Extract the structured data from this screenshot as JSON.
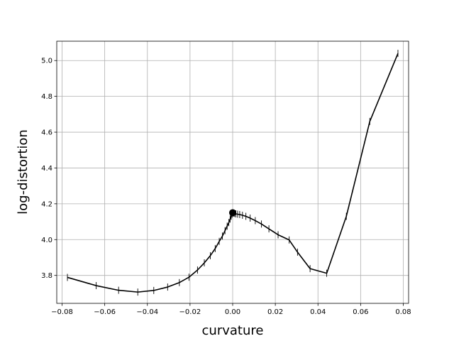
{
  "chart_data": {
    "type": "line",
    "xlabel": "curvature",
    "ylabel": "log-distortion",
    "xlim": [
      -0.0825,
      0.0825
    ],
    "ylim": [
      3.644,
      5.108
    ],
    "grid": true,
    "xticks": [
      -0.08,
      -0.06,
      -0.04,
      -0.02,
      0.0,
      0.02,
      0.04,
      0.06,
      0.08
    ],
    "xtick_labels": [
      "−0.08",
      "−0.06",
      "−0.04",
      "−0.02",
      "0.00",
      "0.02",
      "0.04",
      "0.06",
      "0.08"
    ],
    "yticks": [
      3.8,
      4.0,
      4.2,
      4.4,
      4.6,
      4.8,
      5.0
    ],
    "ytick_labels": [
      "3.8",
      "4.0",
      "4.2",
      "4.4",
      "4.6",
      "4.8",
      "5.0"
    ],
    "line_color": "#000000",
    "series": [
      {
        "x": [
          -0.0775,
          -0.064,
          -0.0535,
          -0.0445,
          -0.037,
          -0.0305,
          -0.025,
          -0.0205,
          -0.0165,
          -0.0133,
          -0.0105,
          -0.0082,
          -0.0063,
          -0.0048,
          -0.0036,
          -0.0026,
          -0.0018,
          -0.0012,
          -0.0007,
          -0.0003,
          0.0,
          0.0004,
          0.0009,
          0.0015,
          0.0023,
          0.0033,
          0.0046,
          0.0062,
          0.0082,
          0.0106,
          0.0135,
          0.017,
          0.0213,
          0.0265,
          0.0304,
          0.0363,
          0.0441,
          0.0533,
          0.0643,
          0.0775
        ],
        "y": [
          3.789,
          3.743,
          3.717,
          3.707,
          3.716,
          3.735,
          3.76,
          3.79,
          3.83,
          3.87,
          3.91,
          3.95,
          3.99,
          4.02,
          4.05,
          4.075,
          4.095,
          4.115,
          4.13,
          4.142,
          4.15,
          4.148,
          4.146,
          4.144,
          4.142,
          4.14,
          4.136,
          4.13,
          4.12,
          4.106,
          4.087,
          4.06,
          4.027,
          3.998,
          3.93,
          3.838,
          3.812,
          4.13,
          4.66,
          5.04
        ]
      }
    ],
    "highlight_point": {
      "x": 0.0,
      "y": 4.15
    }
  }
}
